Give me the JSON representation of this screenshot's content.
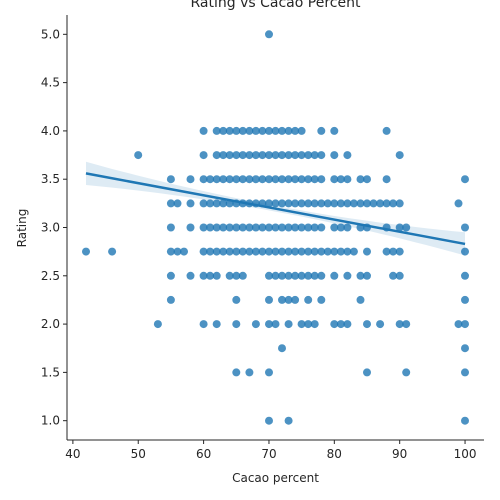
{
  "chart_data": {
    "type": "scatter",
    "title": "Rating vs Cacao Percent",
    "xlabel": "Cacao percent",
    "ylabel": "Rating",
    "xlim": [
      39.1,
      102.9
    ],
    "ylim": [
      0.8,
      5.2
    ],
    "xticks": [
      "40",
      "50",
      "60",
      "70",
      "80",
      "90",
      "100"
    ],
    "yticks": [
      "1.0",
      "1.5",
      "2.0",
      "2.5",
      "3.0",
      "3.5",
      "4.0",
      "4.5",
      "5.0"
    ],
    "grid": false,
    "point_color": "#1f77b4",
    "point_opacity": 0.8,
    "regression": {
      "x_start": 42,
      "y_start": 3.56,
      "x_end": 100,
      "y_end": 2.83,
      "ci_color": "#1f77b4"
    },
    "points": [
      [
        42,
        2.75
      ],
      [
        46,
        2.75
      ],
      [
        50,
        3.75
      ],
      [
        53,
        2.0
      ],
      [
        55,
        2.25
      ],
      [
        55,
        2.5
      ],
      [
        55,
        2.75
      ],
      [
        55,
        3.0
      ],
      [
        55,
        3.25
      ],
      [
        55,
        3.5
      ],
      [
        56,
        2.75
      ],
      [
        56,
        3.25
      ],
      [
        57,
        2.75
      ],
      [
        58,
        2.5
      ],
      [
        58,
        3.0
      ],
      [
        58,
        3.25
      ],
      [
        58,
        3.5
      ],
      [
        60,
        2.0
      ],
      [
        60,
        2.5
      ],
      [
        60,
        2.75
      ],
      [
        60,
        3.0
      ],
      [
        60,
        3.25
      ],
      [
        60,
        3.5
      ],
      [
        60,
        3.75
      ],
      [
        60,
        4.0
      ],
      [
        61,
        2.5
      ],
      [
        61,
        2.75
      ],
      [
        61,
        3.0
      ],
      [
        61,
        3.25
      ],
      [
        61,
        3.5
      ],
      [
        62,
        2.0
      ],
      [
        62,
        2.5
      ],
      [
        62,
        2.75
      ],
      [
        62,
        3.0
      ],
      [
        62,
        3.25
      ],
      [
        62,
        3.5
      ],
      [
        62,
        3.75
      ],
      [
        62,
        4.0
      ],
      [
        63,
        2.75
      ],
      [
        63,
        3.0
      ],
      [
        63,
        3.25
      ],
      [
        63,
        3.5
      ],
      [
        63,
        3.75
      ],
      [
        63,
        4.0
      ],
      [
        64,
        2.5
      ],
      [
        64,
        2.75
      ],
      [
        64,
        3.0
      ],
      [
        64,
        3.25
      ],
      [
        64,
        3.5
      ],
      [
        64,
        3.75
      ],
      [
        64,
        4.0
      ],
      [
        65,
        1.5
      ],
      [
        65,
        2.0
      ],
      [
        65,
        2.25
      ],
      [
        65,
        2.5
      ],
      [
        65,
        2.75
      ],
      [
        65,
        3.0
      ],
      [
        65,
        3.25
      ],
      [
        65,
        3.5
      ],
      [
        65,
        3.75
      ],
      [
        65,
        4.0
      ],
      [
        66,
        2.5
      ],
      [
        66,
        2.75
      ],
      [
        66,
        3.0
      ],
      [
        66,
        3.25
      ],
      [
        66,
        3.5
      ],
      [
        66,
        3.75
      ],
      [
        66,
        4.0
      ],
      [
        67,
        1.5
      ],
      [
        67,
        2.75
      ],
      [
        67,
        3.0
      ],
      [
        67,
        3.25
      ],
      [
        67,
        3.5
      ],
      [
        67,
        3.75
      ],
      [
        67,
        4.0
      ],
      [
        68,
        2.0
      ],
      [
        68,
        2.75
      ],
      [
        68,
        3.0
      ],
      [
        68,
        3.25
      ],
      [
        68,
        3.5
      ],
      [
        68,
        3.75
      ],
      [
        68,
        4.0
      ],
      [
        69,
        2.75
      ],
      [
        69,
        3.0
      ],
      [
        69,
        3.25
      ],
      [
        69,
        3.5
      ],
      [
        69,
        3.75
      ],
      [
        69,
        4.0
      ],
      [
        70,
        1.0
      ],
      [
        70,
        1.5
      ],
      [
        70,
        2.0
      ],
      [
        70,
        2.25
      ],
      [
        70,
        2.5
      ],
      [
        70,
        2.75
      ],
      [
        70,
        3.0
      ],
      [
        70,
        3.25
      ],
      [
        70,
        3.5
      ],
      [
        70,
        3.75
      ],
      [
        70,
        4.0
      ],
      [
        70,
        5.0
      ],
      [
        71,
        2.0
      ],
      [
        71,
        2.5
      ],
      [
        71,
        2.75
      ],
      [
        71,
        3.0
      ],
      [
        71,
        3.25
      ],
      [
        71,
        3.5
      ],
      [
        71,
        3.75
      ],
      [
        71,
        4.0
      ],
      [
        72,
        1.75
      ],
      [
        72,
        2.25
      ],
      [
        72,
        2.5
      ],
      [
        72,
        2.75
      ],
      [
        72,
        3.0
      ],
      [
        72,
        3.25
      ],
      [
        72,
        3.5
      ],
      [
        72,
        3.75
      ],
      [
        72,
        4.0
      ],
      [
        73,
        1.0
      ],
      [
        73,
        2.0
      ],
      [
        73,
        2.25
      ],
      [
        73,
        2.5
      ],
      [
        73,
        2.75
      ],
      [
        73,
        3.0
      ],
      [
        73,
        3.25
      ],
      [
        73,
        3.5
      ],
      [
        73,
        3.75
      ],
      [
        73,
        4.0
      ],
      [
        74,
        2.25
      ],
      [
        74,
        2.5
      ],
      [
        74,
        2.75
      ],
      [
        74,
        3.0
      ],
      [
        74,
        3.25
      ],
      [
        74,
        3.5
      ],
      [
        74,
        3.75
      ],
      [
        74,
        4.0
      ],
      [
        75,
        2.0
      ],
      [
        75,
        2.5
      ],
      [
        75,
        2.75
      ],
      [
        75,
        3.0
      ],
      [
        75,
        3.25
      ],
      [
        75,
        3.5
      ],
      [
        75,
        3.75
      ],
      [
        75,
        4.0
      ],
      [
        76,
        2.0
      ],
      [
        76,
        2.25
      ],
      [
        76,
        2.5
      ],
      [
        76,
        2.75
      ],
      [
        76,
        3.0
      ],
      [
        76,
        3.25
      ],
      [
        76,
        3.5
      ],
      [
        76,
        3.75
      ],
      [
        77,
        2.0
      ],
      [
        77,
        2.5
      ],
      [
        77,
        2.75
      ],
      [
        77,
        3.0
      ],
      [
        77,
        3.25
      ],
      [
        77,
        3.5
      ],
      [
        77,
        3.75
      ],
      [
        78,
        2.25
      ],
      [
        78,
        2.5
      ],
      [
        78,
        2.75
      ],
      [
        78,
        3.0
      ],
      [
        78,
        3.25
      ],
      [
        78,
        3.5
      ],
      [
        78,
        3.75
      ],
      [
        78,
        4.0
      ],
      [
        79,
        2.75
      ],
      [
        79,
        3.25
      ],
      [
        80,
        2.0
      ],
      [
        80,
        2.5
      ],
      [
        80,
        2.75
      ],
      [
        80,
        3.0
      ],
      [
        80,
        3.25
      ],
      [
        80,
        3.5
      ],
      [
        80,
        3.75
      ],
      [
        80,
        4.0
      ],
      [
        81,
        2.0
      ],
      [
        81,
        2.75
      ],
      [
        81,
        3.0
      ],
      [
        81,
        3.25
      ],
      [
        81,
        3.5
      ],
      [
        82,
        2.0
      ],
      [
        82,
        2.5
      ],
      [
        82,
        2.75
      ],
      [
        82,
        3.0
      ],
      [
        82,
        3.25
      ],
      [
        82,
        3.5
      ],
      [
        82,
        3.75
      ],
      [
        83,
        2.75
      ],
      [
        83,
        3.25
      ],
      [
        84,
        2.25
      ],
      [
        84,
        2.5
      ],
      [
        84,
        3.0
      ],
      [
        84,
        3.25
      ],
      [
        84,
        3.5
      ],
      [
        85,
        1.5
      ],
      [
        85,
        2.0
      ],
      [
        85,
        2.5
      ],
      [
        85,
        2.75
      ],
      [
        85,
        3.0
      ],
      [
        85,
        3.25
      ],
      [
        85,
        3.5
      ],
      [
        86,
        3.25
      ],
      [
        87,
        2.0
      ],
      [
        87,
        3.25
      ],
      [
        88,
        2.75
      ],
      [
        88,
        3.0
      ],
      [
        88,
        3.25
      ],
      [
        88,
        3.5
      ],
      [
        88,
        4.0
      ],
      [
        89,
        2.5
      ],
      [
        89,
        2.75
      ],
      [
        89,
        3.25
      ],
      [
        90,
        2.0
      ],
      [
        90,
        2.5
      ],
      [
        90,
        2.75
      ],
      [
        90,
        3.0
      ],
      [
        90,
        3.25
      ],
      [
        90,
        3.75
      ],
      [
        91,
        1.5
      ],
      [
        91,
        2.0
      ],
      [
        91,
        3.0
      ],
      [
        99,
        2.0
      ],
      [
        99,
        3.25
      ],
      [
        100,
        1.0
      ],
      [
        100,
        1.5
      ],
      [
        100,
        1.75
      ],
      [
        100,
        2.0
      ],
      [
        100,
        2.25
      ],
      [
        100,
        2.5
      ],
      [
        100,
        2.75
      ],
      [
        100,
        3.0
      ],
      [
        100,
        3.5
      ]
    ]
  }
}
